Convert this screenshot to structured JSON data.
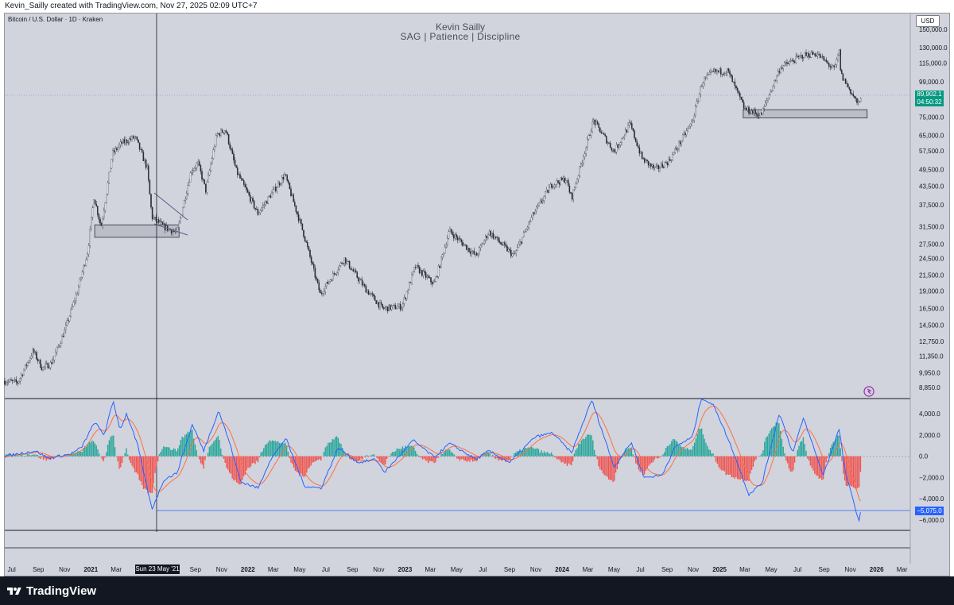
{
  "header": {
    "caption": "Kevin_Sailly created with TradingView.com, Nov 27, 2025 02:09 UTC+7"
  },
  "symbol": "Bitcoin / U.S. Dollar · 1D · Kraken",
  "watermark": {
    "name": "Kevin Sailly",
    "tagline": "SAG | Patience | Discipline"
  },
  "currency_button": "USD",
  "last_price": {
    "value": "89,902.1",
    "countdown": "04:50:32"
  },
  "oscillator_marker": "−5,075.0",
  "crosshair_date": "Sun 23 May '21",
  "brand": "TradingView",
  "colors": {
    "background": "#d1d4dc",
    "candle": "#2a2e39",
    "hist_positive": "#26a69a",
    "hist_negative": "#ef5350",
    "macd_line": "#2962ff",
    "signal_line": "#ff7043",
    "last_price": "#089981"
  },
  "chart_data": [
    {
      "type": "candlestick",
      "symbol": "Bitcoin / U.S. Dollar · 1D · Kraken",
      "scale": "log",
      "y_ticks": [
        "150,000.0",
        "130,000.0",
        "115,000.0",
        "99,000.0",
        "75,000.0",
        "65,000.0",
        "57,500.0",
        "49,500.0",
        "43,500.0",
        "37,500.0",
        "31,500.0",
        "27,500.0",
        "24,500.0",
        "21,500.0",
        "19,000.0",
        "16,500.0",
        "14,500.0",
        "12,750.0",
        "11,350.0",
        "9,950.0",
        "8,850.0"
      ],
      "x_ticks": [
        "Jul",
        "Sep",
        "Nov",
        "2021",
        "Mar",
        "Sun 23 May '21",
        "Sep",
        "Nov",
        "2022",
        "Mar",
        "May",
        "Jul",
        "Sep",
        "Nov",
        "2023",
        "Mar",
        "May",
        "Jul",
        "Sep",
        "Nov",
        "2024",
        "Mar",
        "May",
        "Jul",
        "Sep",
        "Nov",
        "2025",
        "Mar",
        "May",
        "Jul",
        "Sep",
        "Nov",
        "2026",
        "Mar"
      ],
      "price_path": [
        [
          "2020-06-15",
          9300
        ],
        [
          "2020-07-15",
          9200
        ],
        [
          "2020-08-20",
          11800
        ],
        [
          "2020-09-10",
          10300
        ],
        [
          "2020-10-01",
          10700
        ],
        [
          "2020-11-01",
          13800
        ],
        [
          "2020-12-01",
          19000
        ],
        [
          "2020-12-25",
          26000
        ],
        [
          "2021-01-08",
          40000
        ],
        [
          "2021-01-25",
          31500
        ],
        [
          "2021-02-20",
          56000
        ],
        [
          "2021-03-13",
          61000
        ],
        [
          "2021-04-14",
          64000
        ],
        [
          "2021-05-12",
          50000
        ],
        [
          "2021-05-23",
          34000
        ],
        [
          "2021-06-20",
          31500
        ],
        [
          "2021-07-20",
          30000
        ],
        [
          "2021-08-22",
          49000
        ],
        [
          "2021-09-07",
          52000
        ],
        [
          "2021-09-25",
          42000
        ],
        [
          "2021-10-20",
          65000
        ],
        [
          "2021-11-10",
          68000
        ],
        [
          "2021-12-05",
          49000
        ],
        [
          "2022-01-24",
          35000
        ],
        [
          "2022-03-28",
          47500
        ],
        [
          "2022-05-10",
          30000
        ],
        [
          "2022-06-18",
          18500
        ],
        [
          "2022-08-13",
          24500
        ],
        [
          "2022-09-30",
          19400
        ],
        [
          "2022-11-10",
          16500
        ],
        [
          "2022-12-25",
          16800
        ],
        [
          "2023-01-25",
          23000
        ],
        [
          "2023-03-10",
          20000
        ],
        [
          "2023-04-14",
          30500
        ],
        [
          "2023-06-15",
          25000
        ],
        [
          "2023-07-15",
          30300
        ],
        [
          "2023-09-11",
          25000
        ],
        [
          "2023-10-25",
          34500
        ],
        [
          "2023-12-08",
          44000
        ],
        [
          "2024-01-10",
          46000
        ],
        [
          "2024-01-23",
          39500
        ],
        [
          "2024-03-14",
          73000
        ],
        [
          "2024-05-01",
          57000
        ],
        [
          "2024-06-07",
          71000
        ],
        [
          "2024-07-05",
          54000
        ],
        [
          "2024-08-05",
          49500
        ],
        [
          "2024-09-06",
          53000
        ],
        [
          "2024-10-29",
          72000
        ],
        [
          "2024-11-22",
          99000
        ],
        [
          "2024-12-17",
          107000
        ],
        [
          "2025-01-20",
          108000
        ],
        [
          "2025-02-28",
          80000
        ],
        [
          "2025-04-07",
          76000
        ],
        [
          "2025-05-22",
          111000
        ],
        [
          "2025-07-14",
          122000
        ],
        [
          "2025-08-14",
          124000
        ],
        [
          "2025-09-25",
          109000
        ],
        [
          "2025-10-06",
          126000
        ],
        [
          "2025-10-10",
          105000
        ],
        [
          "2025-11-21",
          82000
        ],
        [
          "2025-11-26",
          89902.1
        ]
      ],
      "zones": [
        {
          "from": "2021-01-10",
          "to": "2021-07-25",
          "low": 29000,
          "high": 32000
        },
        {
          "from": "2025-02-25",
          "to": "2025-12-10",
          "low": 74500,
          "high": 79500
        }
      ],
      "last": 89902.1
    },
    {
      "type": "macd",
      "y_ticks": [
        "4,000.0",
        "2,000.0",
        "0.0",
        "−2,000.0",
        "−4,000.0",
        "−6,000.0"
      ],
      "ylim": [
        -6600,
        5600
      ],
      "macd_path": [
        [
          "2020-06-15",
          0
        ],
        [
          "2020-08-25",
          500
        ],
        [
          "2020-09-25",
          -200
        ],
        [
          "2020-11-15",
          200
        ],
        [
          "2020-12-10",
          800
        ],
        [
          "2021-01-10",
          3200
        ],
        [
          "2021-02-01",
          2000
        ],
        [
          "2021-02-22",
          5200
        ],
        [
          "2021-03-10",
          2500
        ],
        [
          "2021-03-25",
          4000
        ],
        [
          "2021-04-20",
          1000
        ],
        [
          "2021-05-23",
          -5000
        ],
        [
          "2021-06-20",
          -2200
        ],
        [
          "2021-07-20",
          -1600
        ],
        [
          "2021-08-25",
          3000
        ],
        [
          "2021-09-20",
          500
        ],
        [
          "2021-10-25",
          4300
        ],
        [
          "2021-11-20",
          1200
        ],
        [
          "2021-12-15",
          -2400
        ],
        [
          "2022-01-25",
          -3000
        ],
        [
          "2022-02-20",
          -500
        ],
        [
          "2022-03-30",
          1700
        ],
        [
          "2022-05-12",
          -2800
        ],
        [
          "2022-06-20",
          -3000
        ],
        [
          "2022-07-30",
          800
        ],
        [
          "2022-09-15",
          -600
        ],
        [
          "2022-10-25",
          -300
        ],
        [
          "2022-11-15",
          -1500
        ],
        [
          "2023-01-20",
          1500
        ],
        [
          "2023-03-10",
          -100
        ],
        [
          "2023-04-15",
          1200
        ],
        [
          "2023-06-15",
          -300
        ],
        [
          "2023-07-15",
          500
        ],
        [
          "2023-09-01",
          -600
        ],
        [
          "2023-10-30",
          1800
        ],
        [
          "2023-12-10",
          2200
        ],
        [
          "2024-01-23",
          300
        ],
        [
          "2024-03-10",
          5300
        ],
        [
          "2024-05-01",
          -1000
        ],
        [
          "2024-06-10",
          1300
        ],
        [
          "2024-07-10",
          -2000
        ],
        [
          "2024-08-20",
          -1800
        ],
        [
          "2024-09-20",
          900
        ],
        [
          "2024-10-30",
          1800
        ],
        [
          "2024-11-20",
          5500
        ],
        [
          "2024-12-20",
          4700
        ],
        [
          "2025-02-01",
          500
        ],
        [
          "2025-03-10",
          -3600
        ],
        [
          "2025-04-10",
          -2500
        ],
        [
          "2025-05-20",
          4100
        ],
        [
          "2025-06-20",
          300
        ],
        [
          "2025-07-15",
          3600
        ],
        [
          "2025-08-30",
          -1800
        ],
        [
          "2025-10-06",
          2600
        ],
        [
          "2025-10-20",
          -1500
        ],
        [
          "2025-11-21",
          -6100
        ],
        [
          "2025-11-26",
          -5075
        ]
      ],
      "marker": -5075
    }
  ]
}
